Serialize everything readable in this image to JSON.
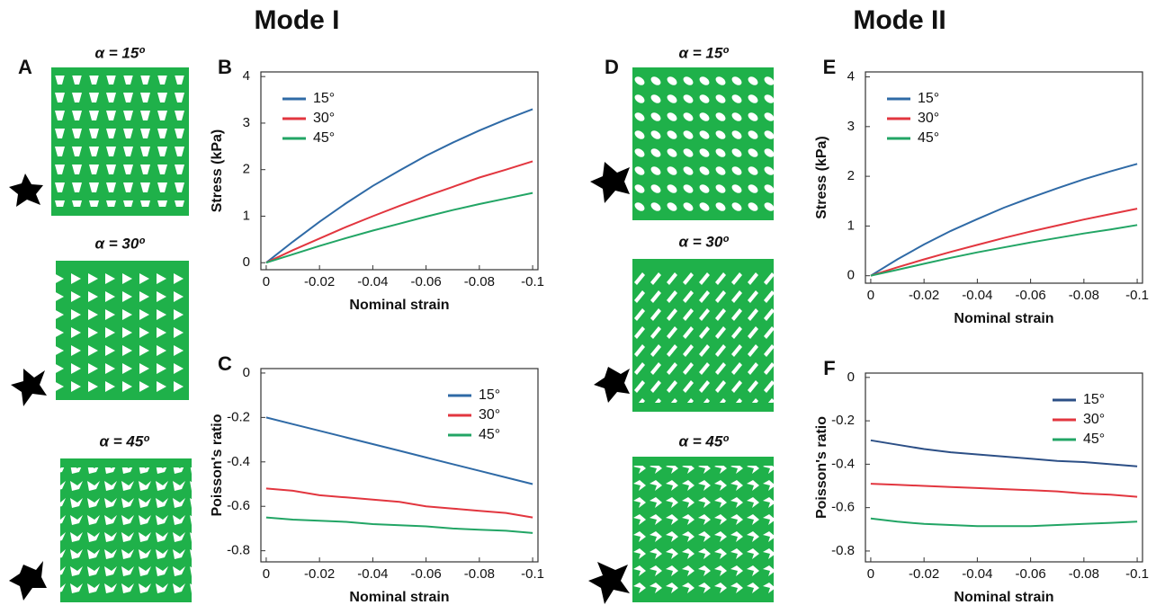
{
  "modes": [
    {
      "heading": "Mode I",
      "letter": "A",
      "structure_labels": [
        "α = 15º",
        "α = 30º",
        "α = 45º"
      ]
    },
    {
      "heading": "Mode II",
      "letter": "D",
      "structure_labels": [
        "α = 15º",
        "α = 30º",
        "α = 45º"
      ]
    }
  ],
  "chart_data": [
    {
      "type": "line",
      "label": "B",
      "xlabel": "Nominal strain",
      "ylabel": "Stress (kPa)",
      "legend": "upper left",
      "x": [
        0,
        -0.01,
        -0.02,
        -0.03,
        -0.04,
        -0.05,
        -0.06,
        -0.07,
        -0.08,
        -0.09,
        -0.1
      ],
      "xlim": [
        0.002,
        -0.102
      ],
      "xticks": [
        0,
        -0.02,
        -0.04,
        -0.06,
        -0.08,
        -0.1
      ],
      "ylim": [
        -0.15,
        4.1
      ],
      "yticks": [
        0,
        1,
        2,
        3,
        4
      ],
      "series": [
        {
          "name": "15°",
          "color": "#2f6aa6",
          "values": [
            0,
            0.45,
            0.88,
            1.28,
            1.65,
            1.98,
            2.3,
            2.58,
            2.84,
            3.08,
            3.3
          ]
        },
        {
          "name": "30°",
          "color": "#e2363f",
          "values": [
            0,
            0.27,
            0.52,
            0.77,
            1.0,
            1.22,
            1.43,
            1.63,
            1.83,
            2.0,
            2.18
          ]
        },
        {
          "name": "45°",
          "color": "#22a565",
          "values": [
            0,
            0.18,
            0.36,
            0.53,
            0.69,
            0.84,
            0.99,
            1.13,
            1.26,
            1.38,
            1.5
          ]
        }
      ]
    },
    {
      "type": "line",
      "label": "C",
      "xlabel": "Nominal strain",
      "ylabel": "Poisson's ratio",
      "legend": "upper right",
      "x": [
        0,
        -0.01,
        -0.02,
        -0.03,
        -0.04,
        -0.05,
        -0.06,
        -0.07,
        -0.08,
        -0.09,
        -0.1
      ],
      "xlim": [
        0.002,
        -0.102
      ],
      "xticks": [
        0,
        -0.02,
        -0.04,
        -0.06,
        -0.08,
        -0.1
      ],
      "ylim": [
        -0.85,
        0.02
      ],
      "yticks": [
        0,
        -0.2,
        -0.4,
        -0.6,
        -0.8
      ],
      "series": [
        {
          "name": "15°",
          "color": "#2f6aa6",
          "values": [
            -0.2,
            -0.23,
            -0.26,
            -0.29,
            -0.32,
            -0.35,
            -0.38,
            -0.41,
            -0.44,
            -0.47,
            -0.5
          ]
        },
        {
          "name": "30°",
          "color": "#e2363f",
          "values": [
            -0.52,
            -0.53,
            -0.55,
            -0.56,
            -0.57,
            -0.58,
            -0.6,
            -0.61,
            -0.62,
            -0.63,
            -0.65
          ]
        },
        {
          "name": "45°",
          "color": "#22a565",
          "values": [
            -0.65,
            -0.66,
            -0.665,
            -0.67,
            -0.68,
            -0.685,
            -0.69,
            -0.7,
            -0.705,
            -0.71,
            -0.72
          ]
        }
      ]
    },
    {
      "type": "line",
      "label": "E",
      "xlabel": "Nominal strain",
      "ylabel": "Stress (kPa)",
      "legend": "upper left",
      "x": [
        0,
        -0.01,
        -0.02,
        -0.03,
        -0.04,
        -0.05,
        -0.06,
        -0.07,
        -0.08,
        -0.09,
        -0.1
      ],
      "xlim": [
        0.002,
        -0.102
      ],
      "xticks": [
        0,
        -0.02,
        -0.04,
        -0.06,
        -0.08,
        -0.1
      ],
      "ylim": [
        -0.15,
        4.1
      ],
      "yticks": [
        0,
        1,
        2,
        3,
        4
      ],
      "series": [
        {
          "name": "15°",
          "color": "#2f6aa6",
          "values": [
            0,
            0.33,
            0.63,
            0.9,
            1.14,
            1.37,
            1.57,
            1.76,
            1.94,
            2.1,
            2.25
          ]
        },
        {
          "name": "30°",
          "color": "#e2363f",
          "values": [
            0,
            0.17,
            0.33,
            0.48,
            0.62,
            0.76,
            0.89,
            1.01,
            1.13,
            1.24,
            1.35
          ]
        },
        {
          "name": "45°",
          "color": "#22a565",
          "values": [
            0,
            0.12,
            0.24,
            0.36,
            0.47,
            0.57,
            0.67,
            0.76,
            0.85,
            0.93,
            1.02
          ]
        }
      ]
    },
    {
      "type": "line",
      "label": "F",
      "xlabel": "Nominal strain",
      "ylabel": "Poisson's ratio",
      "legend": "upper right",
      "x": [
        0,
        -0.01,
        -0.02,
        -0.03,
        -0.04,
        -0.05,
        -0.06,
        -0.07,
        -0.08,
        -0.09,
        -0.1
      ],
      "xlim": [
        0.002,
        -0.102
      ],
      "xticks": [
        0,
        -0.02,
        -0.04,
        -0.06,
        -0.08,
        -0.1
      ],
      "ylim": [
        -0.85,
        0.02
      ],
      "yticks": [
        0,
        -0.2,
        -0.4,
        -0.6,
        -0.8
      ],
      "series": [
        {
          "name": "15°",
          "color": "#2c4f86",
          "values": [
            -0.29,
            -0.31,
            -0.33,
            -0.345,
            -0.355,
            -0.365,
            -0.375,
            -0.385,
            -0.39,
            -0.4,
            -0.41
          ]
        },
        {
          "name": "30°",
          "color": "#e2363f",
          "values": [
            -0.49,
            -0.495,
            -0.5,
            -0.505,
            -0.51,
            -0.515,
            -0.52,
            -0.525,
            -0.535,
            -0.54,
            -0.55
          ]
        },
        {
          "name": "45°",
          "color": "#22a565",
          "values": [
            -0.65,
            -0.665,
            -0.675,
            -0.68,
            -0.685,
            -0.685,
            -0.685,
            -0.68,
            -0.675,
            -0.67,
            -0.665
          ]
        }
      ]
    }
  ]
}
